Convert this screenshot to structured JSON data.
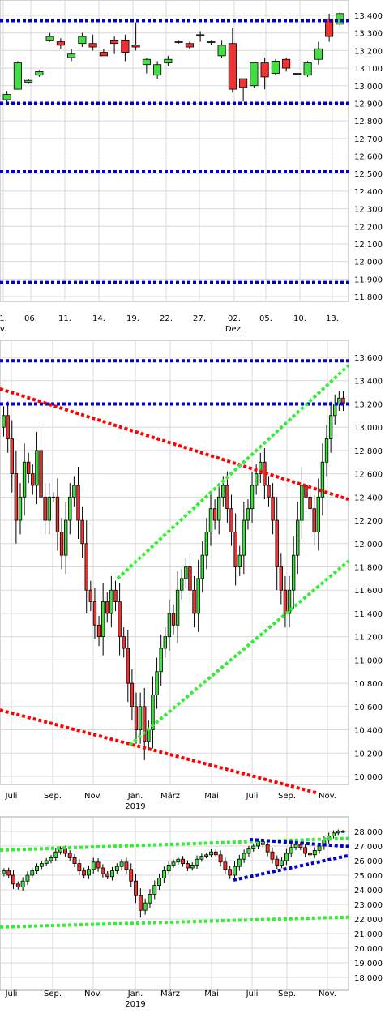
{
  "chart_data": [
    {
      "type": "candlestick",
      "y_ticks": [
        "13.400",
        "13.300",
        "13.200",
        "13.100",
        "13.000",
        "12.900",
        "12.800",
        "12.700",
        "12.600",
        "12.500",
        "12.400",
        "12.300",
        "12.200",
        "12.100",
        "12.000",
        "11.900",
        "11.800"
      ],
      "x_ticks": [
        {
          "label": "1.",
          "sub": "v."
        },
        {
          "label": "06.",
          "sub": ""
        },
        {
          "label": "11.",
          "sub": ""
        },
        {
          "label": "14.",
          "sub": ""
        },
        {
          "label": "19.",
          "sub": ""
        },
        {
          "label": "22.",
          "sub": ""
        },
        {
          "label": "27.",
          "sub": ""
        },
        {
          "label": "02.",
          "sub": "Dez."
        },
        {
          "label": "05.",
          "sub": ""
        },
        {
          "label": "10.",
          "sub": ""
        },
        {
          "label": "13.",
          "sub": ""
        }
      ],
      "ylim": [
        11.75,
        13.45
      ],
      "candles": [
        {
          "o": 12.92,
          "h": 12.97,
          "l": 12.9,
          "c": 12.95
        },
        {
          "o": 12.98,
          "h": 13.14,
          "l": 12.98,
          "c": 13.13
        },
        {
          "o": 13.02,
          "h": 13.04,
          "l": 13.01,
          "c": 13.03
        },
        {
          "o": 13.06,
          "h": 13.09,
          "l": 13.05,
          "c": 13.08
        },
        {
          "o": 13.26,
          "h": 13.3,
          "l": 13.25,
          "c": 13.28
        },
        {
          "o": 13.25,
          "h": 13.27,
          "l": 13.21,
          "c": 13.23
        },
        {
          "o": 13.16,
          "h": 13.21,
          "l": 13.14,
          "c": 13.18
        },
        {
          "o": 13.24,
          "h": 13.3,
          "l": 13.22,
          "c": 13.28
        },
        {
          "o": 13.24,
          "h": 13.29,
          "l": 13.2,
          "c": 13.22
        },
        {
          "o": 13.19,
          "h": 13.21,
          "l": 13.17,
          "c": 13.17
        },
        {
          "o": 13.26,
          "h": 13.28,
          "l": 13.18,
          "c": 13.24
        },
        {
          "o": 13.26,
          "h": 13.29,
          "l": 13.14,
          "c": 13.19
        },
        {
          "o": 13.23,
          "h": 13.36,
          "l": 13.2,
          "c": 13.22
        },
        {
          "o": 13.12,
          "h": 13.16,
          "l": 13.07,
          "c": 13.15
        },
        {
          "o": 13.06,
          "h": 13.14,
          "l": 13.04,
          "c": 13.12
        },
        {
          "o": 13.13,
          "h": 13.17,
          "l": 13.11,
          "c": 13.15
        },
        {
          "o": 13.25,
          "h": 13.26,
          "l": 13.24,
          "c": 13.25
        },
        {
          "o": 13.24,
          "h": 13.25,
          "l": 13.21,
          "c": 13.22
        },
        {
          "o": 13.29,
          "h": 13.31,
          "l": 13.25,
          "c": 13.29
        },
        {
          "o": 13.25,
          "h": 13.26,
          "l": 13.23,
          "c": 13.25
        },
        {
          "o": 13.17,
          "h": 13.26,
          "l": 13.16,
          "c": 13.23
        },
        {
          "o": 13.24,
          "h": 13.33,
          "l": 12.96,
          "c": 12.98
        },
        {
          "o": 13.04,
          "h": 13.04,
          "l": 12.91,
          "c": 12.99
        },
        {
          "o": 13.0,
          "h": 13.13,
          "l": 12.99,
          "c": 13.13
        },
        {
          "o": 13.13,
          "h": 13.16,
          "l": 12.98,
          "c": 13.05
        },
        {
          "o": 13.07,
          "h": 13.15,
          "l": 13.06,
          "c": 13.14
        },
        {
          "o": 13.15,
          "h": 13.16,
          "l": 13.08,
          "c": 13.1
        },
        {
          "o": 13.07,
          "h": 13.07,
          "l": 13.07,
          "c": 13.07
        },
        {
          "o": 13.06,
          "h": 13.14,
          "l": 13.05,
          "c": 13.13
        },
        {
          "o": 13.15,
          "h": 13.25,
          "l": 13.12,
          "c": 13.21
        },
        {
          "o": 13.38,
          "h": 13.41,
          "l": 13.25,
          "c": 13.28
        },
        {
          "o": 13.35,
          "h": 13.42,
          "l": 13.33,
          "c": 13.41
        }
      ],
      "hlines": [
        13.37,
        12.9,
        12.51,
        11.88
      ]
    },
    {
      "type": "candlestick",
      "y_ticks": [
        "13.600",
        "13.400",
        "13.200",
        "13.000",
        "12.800",
        "12.600",
        "12.400",
        "12.200",
        "12.000",
        "11.800",
        "11.600",
        "11.400",
        "11.200",
        "11.000",
        "10.800",
        "10.600",
        "10.400",
        "10.200",
        "10.000"
      ],
      "x_ticks": [
        {
          "label": "Juli",
          "sub": ""
        },
        {
          "label": "Sep.",
          "sub": ""
        },
        {
          "label": "Nov.",
          "sub": ""
        },
        {
          "label": "Jan.",
          "sub": "2019"
        },
        {
          "label": "März",
          "sub": ""
        },
        {
          "label": "Mai",
          "sub": ""
        },
        {
          "label": "Juli",
          "sub": ""
        },
        {
          "label": "Sep.",
          "sub": ""
        },
        {
          "label": "Nov.",
          "sub": ""
        }
      ],
      "ylim": [
        9.85,
        13.72
      ],
      "closes": [
        13.1,
        12.9,
        12.6,
        12.2,
        12.4,
        12.7,
        12.6,
        12.5,
        12.8,
        12.4,
        12.2,
        12.4,
        12.4,
        12.1,
        11.9,
        12.2,
        12.4,
        12.5,
        12.2,
        12.0,
        11.6,
        11.5,
        11.3,
        11.2,
        11.5,
        11.4,
        11.6,
        11.5,
        11.2,
        11.1,
        10.8,
        10.6,
        10.4,
        10.6,
        10.3,
        10.4,
        10.7,
        10.9,
        11.1,
        11.2,
        11.4,
        11.3,
        11.6,
        11.7,
        11.8,
        11.6,
        11.4,
        11.7,
        11.9,
        12.1,
        12.3,
        12.2,
        12.4,
        12.5,
        12.3,
        12.1,
        11.8,
        11.9,
        12.2,
        12.3,
        12.5,
        12.6,
        12.7,
        12.5,
        12.4,
        12.2,
        11.8,
        11.6,
        11.4,
        11.6,
        11.9,
        12.2,
        12.5,
        12.4,
        12.3,
        12.1,
        12.4,
        12.7,
        12.9,
        13.1,
        13.2,
        13.25,
        13.2
      ],
      "hlines": [
        13.57,
        13.2
      ],
      "trendlines": [
        {
          "color": "red",
          "y1": 13.33,
          "y2": 12.38
        },
        {
          "color": "red",
          "y1": 10.57,
          "y2": 9.86
        },
        {
          "color": "green",
          "y1": 11.7,
          "y2": 13.53
        },
        {
          "color": "green",
          "y1": 10.27,
          "y2": 11.85
        }
      ]
    },
    {
      "type": "candlestick",
      "y_ticks": [
        "28.000",
        "27.000",
        "26.000",
        "25.000",
        "24.000",
        "23.000",
        "22.000",
        "21.000",
        "20.000",
        "19.000",
        "18.000"
      ],
      "x_ticks": [
        {
          "label": "Juli",
          "sub": ""
        },
        {
          "label": "Sep.",
          "sub": ""
        },
        {
          "label": "Nov.",
          "sub": ""
        },
        {
          "label": "Jan.",
          "sub": "2019"
        },
        {
          "label": "März",
          "sub": ""
        },
        {
          "label": "Mai",
          "sub": ""
        },
        {
          "label": "Juli",
          "sub": ""
        },
        {
          "label": "Sep.",
          "sub": ""
        },
        {
          "label": "Nov.",
          "sub": ""
        }
      ],
      "ylim": [
        17.2,
        28.35
      ],
      "closes": [
        25.3,
        25.0,
        24.4,
        24.2,
        24.6,
        25.0,
        25.3,
        25.6,
        25.8,
        26.0,
        26.2,
        26.6,
        26.8,
        26.5,
        26.2,
        25.8,
        25.3,
        25.0,
        25.4,
        25.9,
        25.5,
        25.1,
        24.9,
        25.3,
        25.6,
        25.9,
        25.4,
        24.6,
        23.6,
        22.6,
        23.1,
        23.7,
        24.3,
        24.8,
        25.3,
        25.7,
        25.9,
        26.1,
        25.8,
        25.5,
        25.7,
        26.1,
        26.3,
        26.4,
        26.6,
        26.4,
        25.9,
        25.4,
        25.0,
        25.6,
        26.1,
        26.5,
        26.8,
        27.0,
        27.3,
        27.1,
        26.6,
        26.1,
        25.7,
        26.0,
        26.5,
        26.9,
        27.1,
        26.9,
        26.5,
        26.4,
        26.7,
        27.0,
        27.4,
        27.7,
        27.9,
        28.0,
        28.0
      ],
      "hlines": [],
      "trendlines": [
        {
          "color": "green",
          "y1": 26.72,
          "y2": 27.53
        },
        {
          "color": "green",
          "y1": 21.45,
          "y2": 22.13
        },
        {
          "color": "blue",
          "y1": 24.67,
          "y2": 26.35
        },
        {
          "color": "blue",
          "y1": 27.45,
          "y2": 26.97
        }
      ]
    }
  ]
}
